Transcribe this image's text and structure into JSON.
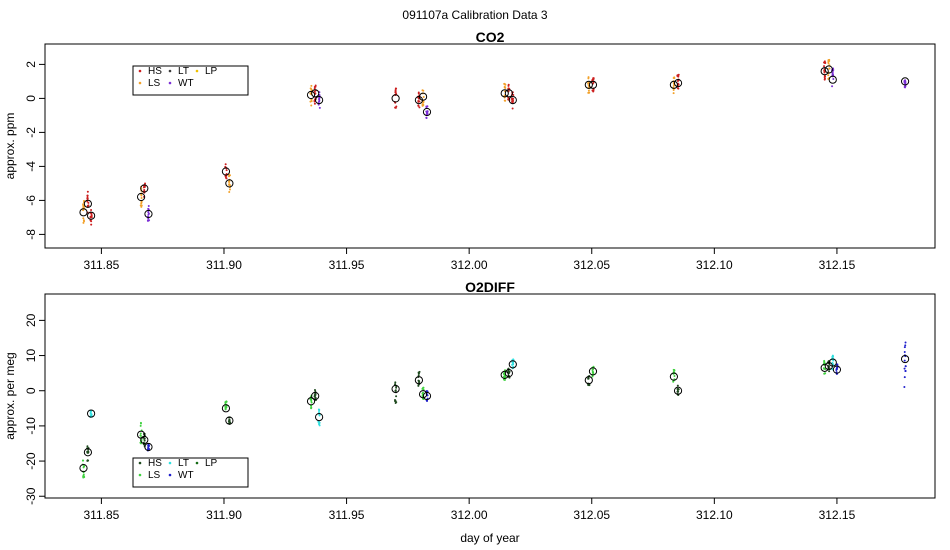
{
  "figure_title": "091107a   Calibration Data 3",
  "colors": {
    "HS": "#cc1f1f",
    "LS": "#f2a12a",
    "LT": "#3b3b3b",
    "WT": "#7b2fd6",
    "LP": "#f0c000",
    "o2_HS": "#1f4a1f",
    "o2_LS": "#3fd23f",
    "o2_LT": "#2fe0e0",
    "o2_WT": "#1f1fcc",
    "o2_LP": "#146a14"
  },
  "chart_data": [
    {
      "type": "scatter",
      "title": "CO2",
      "xlabel": "",
      "ylabel": "approx. ppm",
      "xlim": [
        311.827,
        312.19
      ],
      "ylim": [
        -8.8,
        3.2
      ],
      "x_ticks": [
        "311.85",
        "311.90",
        "311.95",
        "312.00",
        "312.05",
        "312.10",
        "312.15"
      ],
      "x_tick_values": [
        311.85,
        311.9,
        311.95,
        312.0,
        312.05,
        312.1,
        312.15
      ],
      "y_ticks": [
        "-8",
        "-6",
        "-4",
        "-2",
        "0",
        "2"
      ],
      "y_tick_values": [
        -8,
        -6,
        -4,
        -2,
        0,
        2
      ],
      "legend": {
        "position": "top-left",
        "entries": [
          "HS",
          "LS",
          "LT",
          "WT",
          "LP"
        ]
      },
      "groups": [
        {
          "x": 311.8427,
          "mean": -6.7,
          "spread": 1.6,
          "series": "LS"
        },
        {
          "x": 311.8445,
          "mean": -6.2,
          "spread": 1.5,
          "series": "HS"
        },
        {
          "x": 311.8458,
          "mean": -6.9,
          "spread": 1.1,
          "series": "HS"
        },
        {
          "x": 311.8662,
          "mean": -5.8,
          "spread": 1.2,
          "series": "LS"
        },
        {
          "x": 311.8675,
          "mean": -5.3,
          "spread": 1.0,
          "series": "HS"
        },
        {
          "x": 311.8692,
          "mean": -6.8,
          "spread": 1.0,
          "series": "WT"
        },
        {
          "x": 311.9008,
          "mean": -4.3,
          "spread": 1.0,
          "series": "HS"
        },
        {
          "x": 311.9022,
          "mean": -5.0,
          "spread": 1.1,
          "series": "LS"
        },
        {
          "x": 311.9355,
          "mean": 0.2,
          "spread": 1.3,
          "series": "LS"
        },
        {
          "x": 311.9372,
          "mean": 0.3,
          "spread": 1.4,
          "series": "HS"
        },
        {
          "x": 311.9388,
          "mean": -0.1,
          "spread": 1.0,
          "series": "WT"
        },
        {
          "x": 311.97,
          "mean": 0.0,
          "spread": 1.2,
          "series": "HS"
        },
        {
          "x": 311.9795,
          "mean": -0.1,
          "spread": 0.9,
          "series": "HS"
        },
        {
          "x": 311.9812,
          "mean": 0.1,
          "spread": 1.1,
          "series": "LS"
        },
        {
          "x": 311.9828,
          "mean": -0.8,
          "spread": 0.8,
          "series": "WT"
        },
        {
          "x": 312.0145,
          "mean": 0.3,
          "spread": 1.2,
          "series": "LS"
        },
        {
          "x": 312.0162,
          "mean": 0.3,
          "spread": 1.1,
          "series": "HS"
        },
        {
          "x": 312.0178,
          "mean": -0.1,
          "spread": 1.0,
          "series": "HS"
        },
        {
          "x": 312.0488,
          "mean": 0.8,
          "spread": 1.1,
          "series": "LS"
        },
        {
          "x": 312.0505,
          "mean": 0.8,
          "spread": 1.0,
          "series": "HS"
        },
        {
          "x": 312.0835,
          "mean": 0.8,
          "spread": 1.0,
          "series": "LS"
        },
        {
          "x": 312.0852,
          "mean": 0.9,
          "spread": 1.0,
          "series": "HS"
        },
        {
          "x": 312.145,
          "mean": 1.6,
          "spread": 1.2,
          "series": "HS"
        },
        {
          "x": 312.1467,
          "mean": 1.7,
          "spread": 1.3,
          "series": "LS"
        },
        {
          "x": 312.1483,
          "mean": 1.1,
          "spread": 1.4,
          "series": "WT"
        },
        {
          "x": 312.1778,
          "mean": 1.0,
          "spread": 0.7,
          "series": "WT"
        }
      ]
    },
    {
      "type": "scatter",
      "title": "O2DIFF",
      "xlabel": "day of year",
      "ylabel": "approx. per meg",
      "xlim": [
        311.827,
        312.19
      ],
      "ylim": [
        -30.5,
        27.5
      ],
      "x_ticks": [
        "311.85",
        "311.90",
        "311.95",
        "312.00",
        "312.05",
        "312.10",
        "312.15"
      ],
      "x_tick_values": [
        311.85,
        311.9,
        311.95,
        312.0,
        312.05,
        312.1,
        312.15
      ],
      "y_ticks": [
        "-30",
        "-20",
        "-10",
        "0",
        "10",
        "20"
      ],
      "y_tick_values": [
        -30,
        -20,
        -10,
        0,
        10,
        20
      ],
      "legend": {
        "position": "bottom-left",
        "entries": [
          "HS",
          "LS",
          "LT",
          "WT",
          "LP"
        ]
      },
      "groups": [
        {
          "x": 311.8427,
          "mean": -22.0,
          "spread": 5.5,
          "series": "o2_LS"
        },
        {
          "x": 311.8445,
          "mean": -17.5,
          "spread": 5.0,
          "series": "o2_HS"
        },
        {
          "x": 311.8458,
          "mean": -6.5,
          "spread": 2.0,
          "series": "o2_LT"
        },
        {
          "x": 311.8662,
          "mean": -12.5,
          "spread": 7.0,
          "series": "o2_LS"
        },
        {
          "x": 311.8675,
          "mean": -14.0,
          "spread": 4.0,
          "series": "o2_HS"
        },
        {
          "x": 311.8692,
          "mean": -16.0,
          "spread": 2.0,
          "series": "o2_WT"
        },
        {
          "x": 311.9008,
          "mean": -5.0,
          "spread": 4.0,
          "series": "o2_LS"
        },
        {
          "x": 311.9022,
          "mean": -8.5,
          "spread": 2.0,
          "series": "o2_HS"
        },
        {
          "x": 311.9355,
          "mean": -3.0,
          "spread": 4.0,
          "series": "o2_LS"
        },
        {
          "x": 311.9372,
          "mean": -1.5,
          "spread": 4.0,
          "series": "o2_HS"
        },
        {
          "x": 311.9388,
          "mean": -7.5,
          "spread": 5.0,
          "series": "o2_LT"
        },
        {
          "x": 311.97,
          "mean": 0.5,
          "spread": 8.0,
          "series": "o2_HS"
        },
        {
          "x": 311.9795,
          "mean": 3.0,
          "spread": 5.0,
          "series": "o2_HS"
        },
        {
          "x": 311.9812,
          "mean": -1.0,
          "spread": 4.0,
          "series": "o2_LS"
        },
        {
          "x": 311.9828,
          "mean": -1.5,
          "spread": 3.0,
          "series": "o2_WT"
        },
        {
          "x": 312.0145,
          "mean": 4.5,
          "spread": 3.0,
          "series": "o2_LS"
        },
        {
          "x": 312.0162,
          "mean": 5.0,
          "spread": 3.0,
          "series": "o2_HS"
        },
        {
          "x": 312.0178,
          "mean": 7.5,
          "spread": 3.5,
          "series": "o2_LT"
        },
        {
          "x": 312.0488,
          "mean": 3.0,
          "spread": 3.0,
          "series": "o2_HS"
        },
        {
          "x": 312.0505,
          "mean": 5.5,
          "spread": 3.0,
          "series": "o2_LS"
        },
        {
          "x": 312.0835,
          "mean": 4.0,
          "spread": 4.0,
          "series": "o2_LS"
        },
        {
          "x": 312.0852,
          "mean": 0.0,
          "spread": 3.0,
          "series": "o2_HS"
        },
        {
          "x": 312.145,
          "mean": 6.5,
          "spread": 4.0,
          "series": "o2_LS"
        },
        {
          "x": 312.1467,
          "mean": 7.0,
          "spread": 4.0,
          "series": "o2_HS"
        },
        {
          "x": 312.1483,
          "mean": 8.0,
          "spread": 4.0,
          "series": "o2_LT"
        },
        {
          "x": 312.15,
          "mean": 6.0,
          "spread": 3.0,
          "series": "o2_WT"
        },
        {
          "x": 312.1778,
          "mean": 9.0,
          "spread": 16.0,
          "series": "o2_WT"
        }
      ]
    }
  ]
}
